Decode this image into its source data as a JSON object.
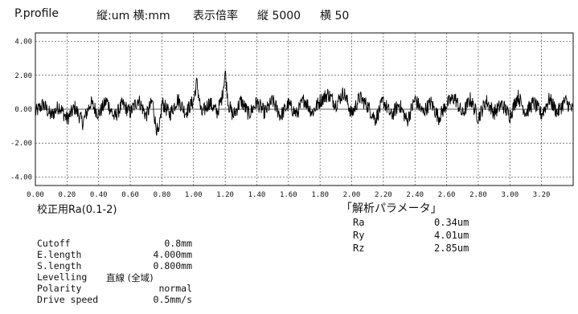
{
  "header": {
    "profile": "P.profile",
    "units": "縦:um 横:mm",
    "magnification_label": "表示倍率",
    "vertical": "縦 5000",
    "horizontal": "横 50"
  },
  "chart_data": {
    "type": "line",
    "title": "P.profile",
    "xlabel": "",
    "ylabel": "",
    "xlim": [
      0.0,
      3.4
    ],
    "ylim": [
      -4.5,
      4.5
    ],
    "x_ticks": [
      "0.00",
      "0.20",
      "0.40",
      "0.60",
      "0.80",
      "1.00",
      "1.20",
      "1.40",
      "1.60",
      "1.80",
      "2.00",
      "2.20",
      "2.40",
      "2.60",
      "2.80",
      "3.00",
      "3.20"
    ],
    "x_tick_values": [
      0.0,
      0.2,
      0.4,
      0.6,
      0.8,
      1.0,
      1.2,
      1.4,
      1.6,
      1.8,
      2.0,
      2.2,
      2.4,
      2.6,
      2.8,
      3.0,
      3.2
    ],
    "y_ticks": [
      "4.00",
      "2.00",
      "0.00",
      "-2.00",
      "-4.00"
    ],
    "y_tick_values": [
      4.0,
      2.0,
      0.0,
      -2.0,
      -4.0
    ],
    "grid": true,
    "series": [
      {
        "values_x": [
          0.0,
          0.05,
          0.1,
          0.15,
          0.2,
          0.25,
          0.3,
          0.35,
          0.4,
          0.45,
          0.5,
          0.55,
          0.6,
          0.65,
          0.7,
          0.74,
          0.76,
          0.78,
          0.8,
          0.85,
          0.9,
          0.95,
          1.0,
          1.02,
          1.05,
          1.1,
          1.15,
          1.18,
          1.2,
          1.22,
          1.25,
          1.3,
          1.35,
          1.4,
          1.45,
          1.5,
          1.55,
          1.6,
          1.65,
          1.7,
          1.75,
          1.8,
          1.85,
          1.9,
          1.95,
          2.0,
          2.05,
          2.1,
          2.15,
          2.2,
          2.25,
          2.3,
          2.35,
          2.4,
          2.45,
          2.5,
          2.55,
          2.6,
          2.65,
          2.7,
          2.75,
          2.8,
          2.85,
          2.9,
          2.95,
          3.0,
          3.05,
          3.1,
          3.15,
          3.2,
          3.25,
          3.3,
          3.35,
          3.4
        ],
        "values_y": [
          -0.2,
          0.3,
          -0.4,
          0.2,
          -0.6,
          0.1,
          -0.8,
          0.4,
          -0.3,
          0.5,
          -0.5,
          0.3,
          -0.2,
          0.6,
          -0.4,
          0.5,
          -0.9,
          -1.6,
          0.4,
          -0.3,
          0.6,
          -0.2,
          0.5,
          1.6,
          -0.3,
          0.4,
          -0.2,
          0.7,
          2.2,
          0.3,
          -0.4,
          0.5,
          -0.3,
          0.4,
          -0.2,
          0.5,
          -0.4,
          0.3,
          -0.3,
          0.6,
          -0.2,
          0.5,
          0.9,
          0.3,
          1.0,
          -0.3,
          0.7,
          0.2,
          -0.6,
          0.5,
          -0.4,
          0.3,
          -0.7,
          0.6,
          -0.2,
          0.4,
          -0.5,
          0.3,
          0.7,
          -0.3,
          0.6,
          -0.5,
          0.5,
          -0.2,
          0.3,
          -0.4,
          0.8,
          -0.2,
          0.4,
          -0.3,
          0.6,
          -0.2,
          0.5,
          -0.1
        ]
      }
    ]
  },
  "subtitle": "校正用Ra(0.1-2)",
  "analysis": {
    "title": "「解析パラメータ」",
    "params": [
      {
        "label": "Ra",
        "value": "0.34um"
      },
      {
        "label": "Ry",
        "value": "4.01um"
      },
      {
        "label": "Rz",
        "value": "2.85um"
      }
    ]
  },
  "settings": [
    {
      "label": "Cutoff",
      "value": "0.8mm"
    },
    {
      "label": "E.length",
      "value": "4.000mm"
    },
    {
      "label": "S.length",
      "value": "0.800mm"
    },
    {
      "label": "Levelling",
      "value": "直線 (全域)"
    },
    {
      "label": "Polarity",
      "value": "normal"
    },
    {
      "label": "Drive speed",
      "value": "0.5mm/s"
    }
  ]
}
